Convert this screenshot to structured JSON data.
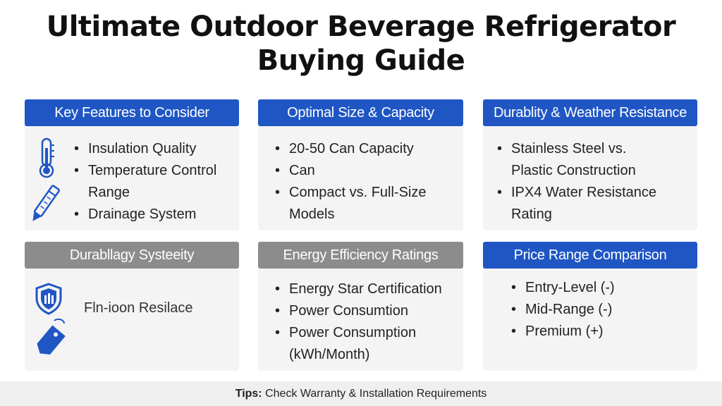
{
  "title": {
    "line1": "Ultimate Outdoor Beverage Refrigerator",
    "line2": "Buying Guide"
  },
  "cards": [
    {
      "header": "Key Features to Consider",
      "items": [
        "Insulation Quality",
        "Temperature Control",
        "Range",
        "Drainage System"
      ],
      "icons": [
        "thermometer-icon",
        "pen-icon"
      ]
    },
    {
      "header": "Optimal Size & Capacity",
      "items": [
        "20-50 Can Capacity",
        "Can",
        "Compact vs. Full-Size",
        "Models"
      ]
    },
    {
      "header": "Durablity & Weather Resistance",
      "items": [
        "Stainless Steel vs.",
        "Plastic Construction",
        "IPX4 Water Resistance",
        "Rating"
      ]
    },
    {
      "header": "Durabllagy Systeeity",
      "text": "Fln-ioon Resilace",
      "icons": [
        "shield-icon",
        "price-tag-icon"
      ]
    },
    {
      "header": "Energy Efficiency Ratings",
      "items": [
        "Energy Star Certification",
        "Power Consumtion",
        "Power Consumption",
        "(kWh/Month)"
      ]
    },
    {
      "header": "Price Range Comparison",
      "items": [
        "Entry-Level (-)",
        "Mid-Range (-)",
        "Premium (+)"
      ]
    }
  ],
  "tips": {
    "label": "Tips:",
    "text": " Check Warranty & Installation Requirements"
  },
  "colors": {
    "header_blue": "#1f56c4",
    "header_gray": "#8c8c8c",
    "icon_blue": "#1f56c4"
  }
}
